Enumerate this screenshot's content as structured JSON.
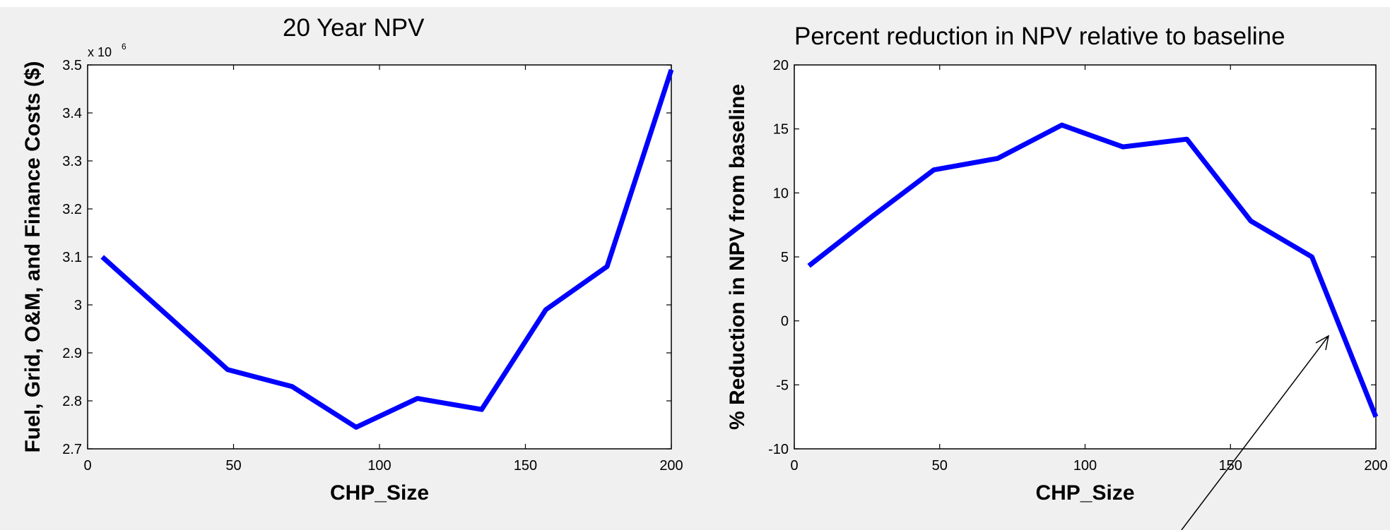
{
  "colors": {
    "series": "#0000ff",
    "background": "#f0f0f0",
    "plot_bg": "#ffffff",
    "axis": "#000000"
  },
  "chart_data": [
    {
      "type": "line",
      "title": "20 Year NPV",
      "xlabel": "CHP_Size",
      "ylabel": "Fuel, Grid, O&M, and Finance Costs ($)",
      "exponent_label": "x 10",
      "exponent_power": "6",
      "xlim": [
        0,
        200
      ],
      "ylim": [
        2.7,
        3.5
      ],
      "xticks": [
        "0",
        "50",
        "100",
        "150",
        "200"
      ],
      "yticks": [
        "2.7",
        "2.8",
        "2.9",
        "3",
        "3.1",
        "3.2",
        "3.3",
        "3.4",
        "3.5"
      ],
      "grid": false,
      "x": [
        5,
        27,
        48,
        70,
        92,
        113,
        135,
        157,
        178,
        200
      ],
      "y": [
        3.1,
        2.98,
        2.865,
        2.83,
        2.745,
        2.805,
        2.782,
        2.99,
        3.08,
        3.49
      ]
    },
    {
      "type": "line",
      "title": "Percent reduction in NPV relative to baseline",
      "xlabel": "CHP_Size",
      "ylabel": "% Reduction in NPV from baseline",
      "xlim": [
        0,
        200
      ],
      "ylim": [
        -10,
        20
      ],
      "xticks": [
        "0",
        "50",
        "100",
        "150",
        "200"
      ],
      "yticks": [
        "-10",
        "-5",
        "0",
        "5",
        "10",
        "15",
        "20"
      ],
      "grid": false,
      "x": [
        5,
        27,
        48,
        70,
        92,
        113,
        135,
        157,
        178,
        200
      ],
      "y": [
        4.3,
        8.2,
        11.8,
        12.7,
        15.3,
        13.6,
        14.2,
        7.8,
        5.0,
        -7.5
      ]
    }
  ]
}
